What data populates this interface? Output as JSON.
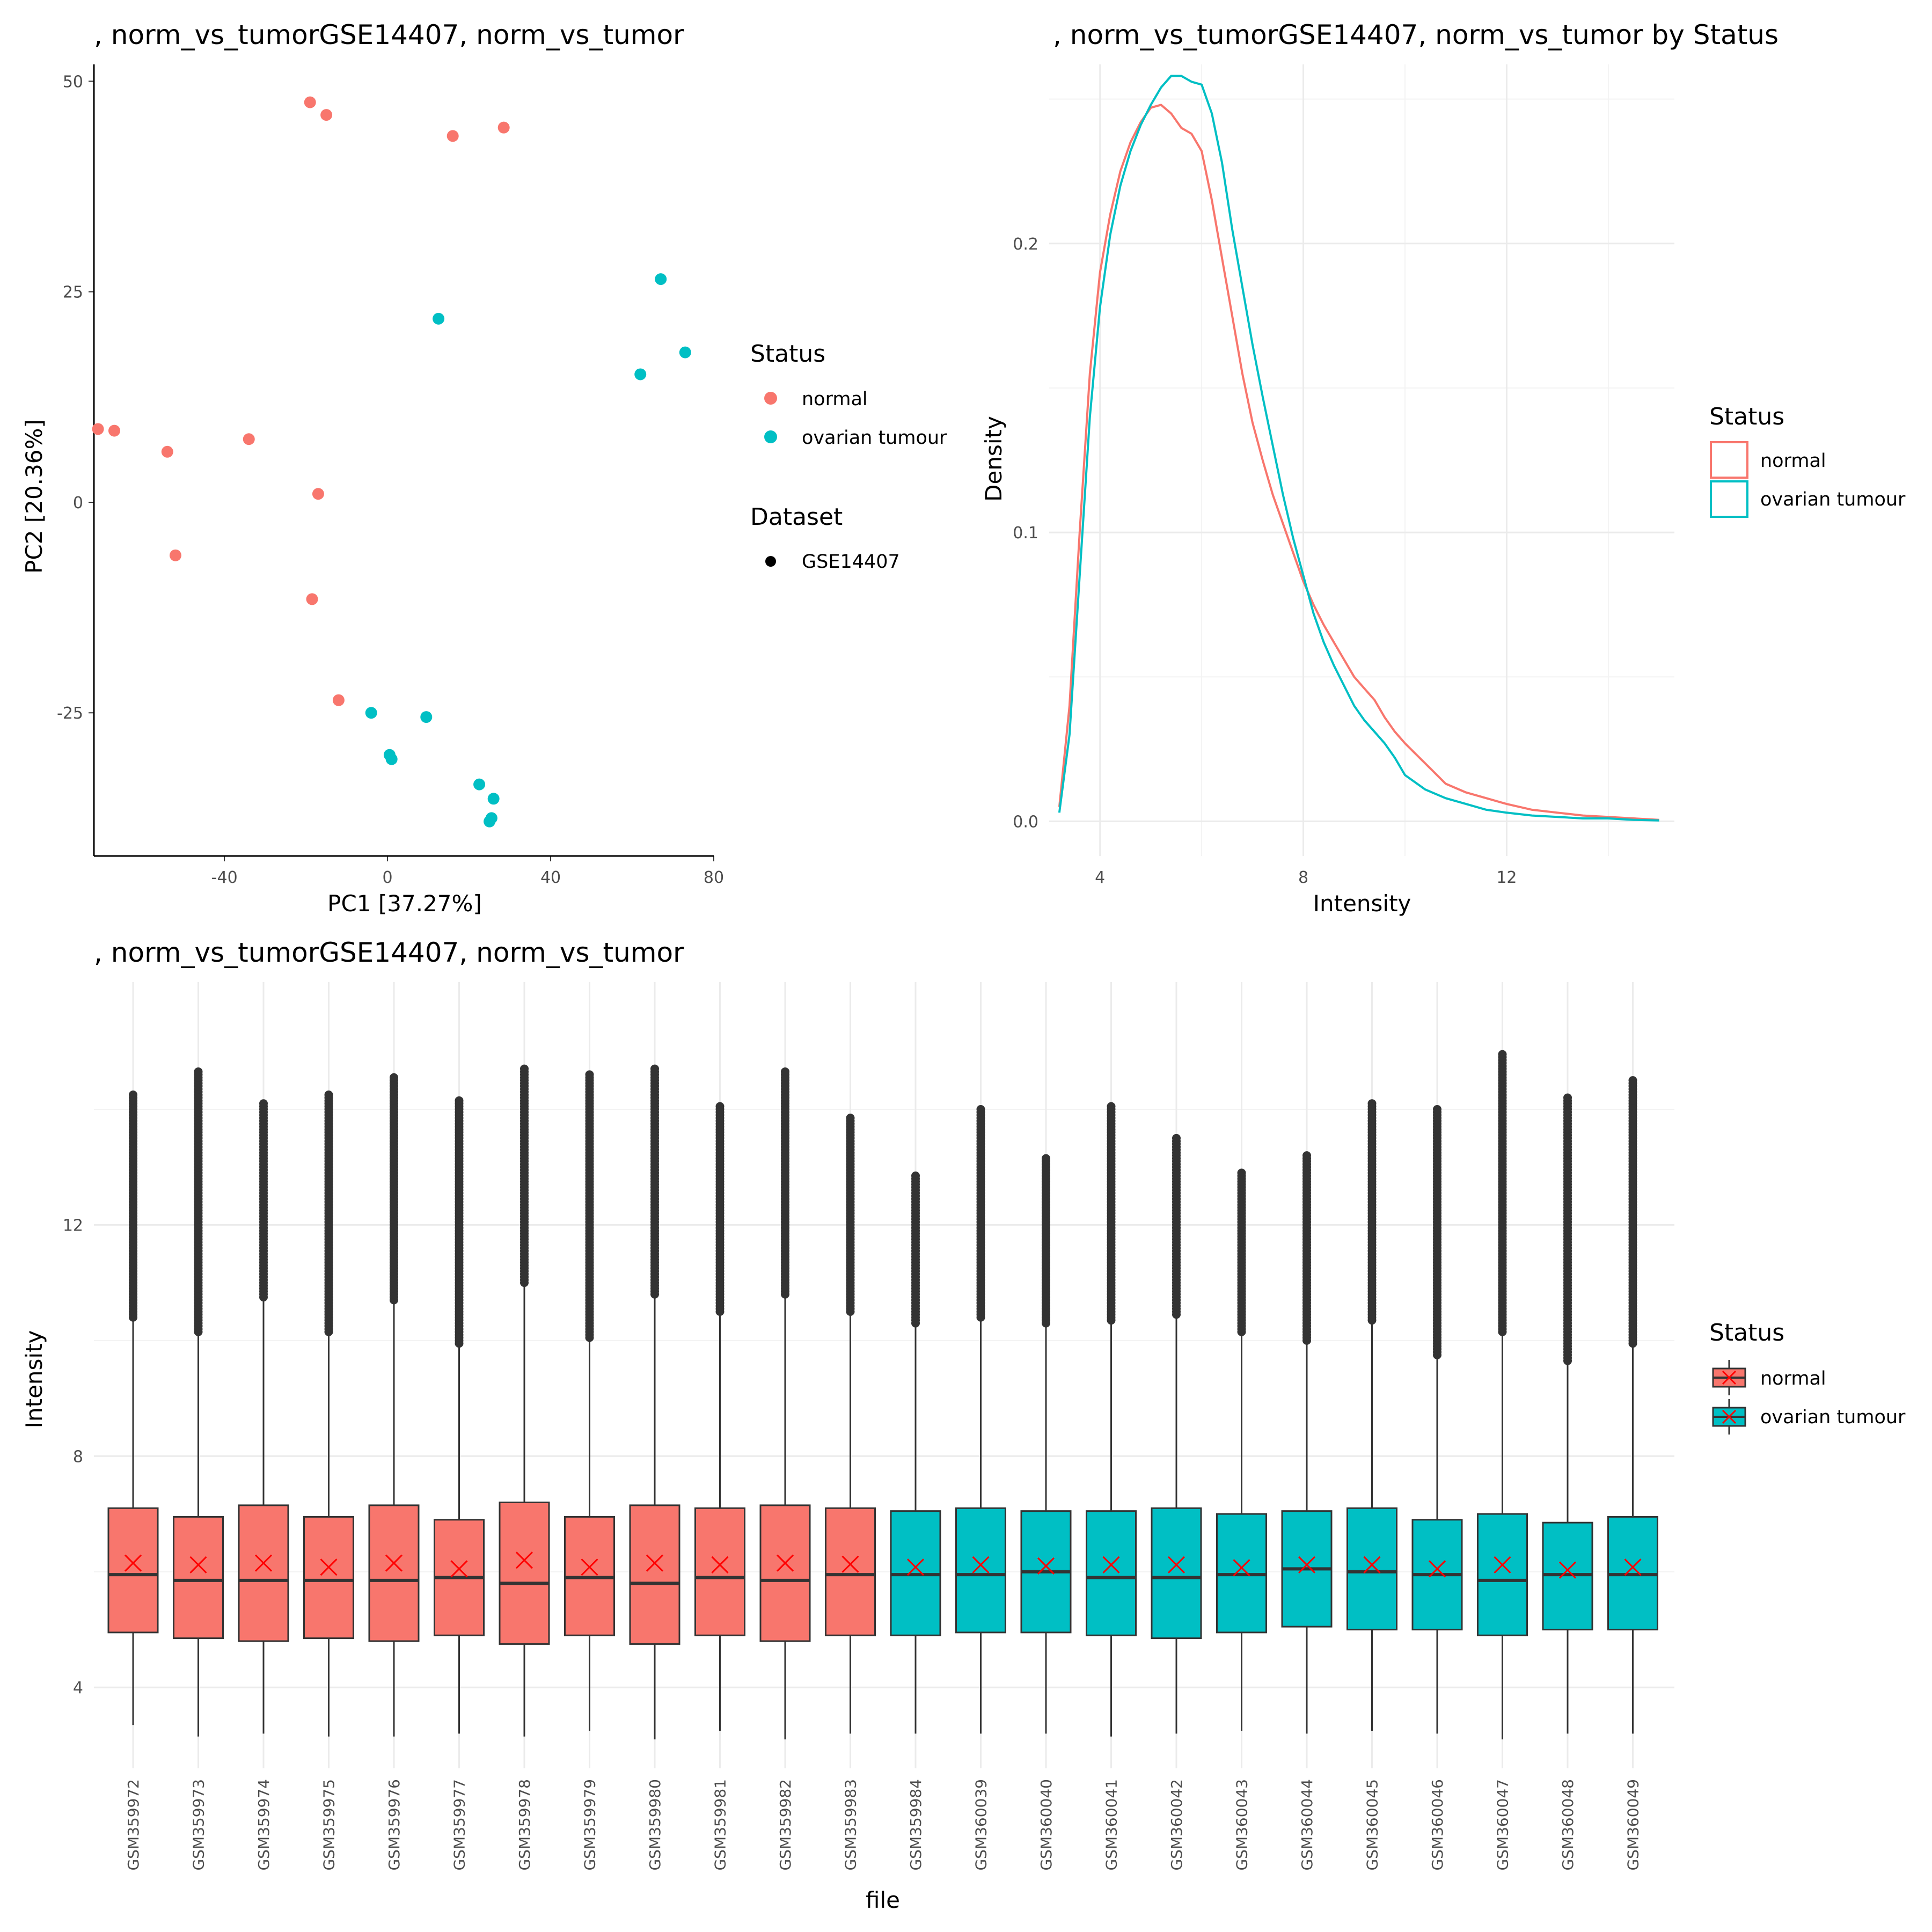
{
  "colors": {
    "normal": "#F8766D",
    "tumour": "#00BFC4",
    "grid": "#EBEBEB",
    "axis": "#000000",
    "text": "#4D4D4D",
    "mean_marker": "#FF0000",
    "box_line": "#333333"
  },
  "chart_data": [
    {
      "type": "scatter",
      "title": ", norm_vs_tumorGSE14407, norm_vs_tumor",
      "xlabel": "PC1 [37.27%]",
      "ylabel": "PC2 [20.36%]",
      "xlim": [
        -72,
        80
      ],
      "ylim": [
        -42,
        52
      ],
      "xticks": [
        -40,
        0,
        40,
        80
      ],
      "yticks": [
        -25,
        0,
        25,
        50
      ],
      "grid": false,
      "legend": {
        "position": "right",
        "groups": [
          {
            "title": "Status",
            "entries": [
              "normal",
              "ovarian tumour"
            ]
          },
          {
            "title": "Dataset",
            "entries": [
              "GSE14407"
            ]
          }
        ]
      },
      "series": [
        {
          "name": "normal",
          "points": [
            [
              -19,
              47.5
            ],
            [
              -15,
              46
            ],
            [
              16,
              43.5
            ],
            [
              28.5,
              44.5
            ],
            [
              -71,
              8.7
            ],
            [
              -67,
              8.5
            ],
            [
              -54,
              6
            ],
            [
              -34,
              7.5
            ],
            [
              -17,
              1
            ],
            [
              -52,
              -6.3
            ],
            [
              -18.5,
              -11.5
            ],
            [
              -12,
              -23.5
            ]
          ]
        },
        {
          "name": "ovarian tumour",
          "points": [
            [
              67,
              26.5
            ],
            [
              12.5,
              21.8
            ],
            [
              73,
              17.8
            ],
            [
              62,
              15.2
            ],
            [
              -4,
              -25
            ],
            [
              9.5,
              -25.5
            ],
            [
              0.5,
              -30
            ],
            [
              1,
              -30.5
            ],
            [
              22.5,
              -33.5
            ],
            [
              26,
              -35.2
            ],
            [
              25.5,
              -37.5
            ],
            [
              25,
              -37.9
            ]
          ]
        }
      ]
    },
    {
      "type": "line",
      "title": ", norm_vs_tumorGSE14407, norm_vs_tumor  by Status",
      "xlabel": "Intensity",
      "ylabel": "Density",
      "xlim": [
        3.0,
        15.3
      ],
      "ylim": [
        -0.012,
        0.262
      ],
      "xticks": [
        4,
        8,
        12
      ],
      "yticks": [
        0.0,
        0.1,
        0.2
      ],
      "grid": true,
      "legend": {
        "position": "right",
        "title": "Status",
        "entries": [
          "normal",
          "ovarian tumour"
        ]
      },
      "series": [
        {
          "name": "normal",
          "x": [
            3.2,
            3.4,
            3.6,
            3.8,
            4.0,
            4.2,
            4.4,
            4.6,
            4.8,
            5.0,
            5.2,
            5.4,
            5.6,
            5.8,
            6.0,
            6.2,
            6.4,
            6.6,
            6.8,
            7.0,
            7.2,
            7.4,
            7.6,
            7.8,
            8.0,
            8.2,
            8.4,
            8.6,
            8.8,
            9.0,
            9.2,
            9.4,
            9.6,
            9.8,
            10.0,
            10.4,
            10.8,
            11.2,
            11.6,
            12.0,
            12.5,
            13.0,
            13.5,
            14.0,
            14.5,
            15.0
          ],
          "y": [
            0.005,
            0.04,
            0.1,
            0.155,
            0.19,
            0.21,
            0.225,
            0.235,
            0.242,
            0.247,
            0.248,
            0.245,
            0.24,
            0.238,
            0.232,
            0.215,
            0.195,
            0.175,
            0.155,
            0.138,
            0.125,
            0.113,
            0.103,
            0.093,
            0.083,
            0.075,
            0.068,
            0.062,
            0.056,
            0.05,
            0.046,
            0.042,
            0.036,
            0.031,
            0.027,
            0.02,
            0.013,
            0.01,
            0.008,
            0.006,
            0.004,
            0.003,
            0.002,
            0.0015,
            0.001,
            0.0005
          ]
        },
        {
          "name": "ovarian tumour",
          "x": [
            3.2,
            3.4,
            3.6,
            3.8,
            4.0,
            4.2,
            4.4,
            4.6,
            4.8,
            5.0,
            5.2,
            5.4,
            5.6,
            5.8,
            6.0,
            6.2,
            6.4,
            6.6,
            6.8,
            7.0,
            7.2,
            7.4,
            7.6,
            7.8,
            8.0,
            8.2,
            8.4,
            8.6,
            8.8,
            9.0,
            9.2,
            9.4,
            9.6,
            9.8,
            10.0,
            10.4,
            10.8,
            11.2,
            11.6,
            12.0,
            12.5,
            13.0,
            13.5,
            14.0,
            14.5,
            15.0
          ],
          "y": [
            0.003,
            0.03,
            0.085,
            0.14,
            0.178,
            0.203,
            0.22,
            0.232,
            0.241,
            0.248,
            0.254,
            0.258,
            0.258,
            0.256,
            0.255,
            0.245,
            0.228,
            0.205,
            0.185,
            0.165,
            0.147,
            0.13,
            0.113,
            0.098,
            0.085,
            0.072,
            0.062,
            0.054,
            0.047,
            0.04,
            0.035,
            0.031,
            0.027,
            0.022,
            0.016,
            0.011,
            0.008,
            0.006,
            0.004,
            0.003,
            0.002,
            0.0015,
            0.001,
            0.001,
            0.0005,
            0.0003
          ]
        }
      ]
    },
    {
      "type": "box",
      "title": ", norm_vs_tumorGSE14407, norm_vs_tumor",
      "xlabel": "file",
      "ylabel": "Intensity",
      "ylim": [
        2.6,
        16.2
      ],
      "yticks": [
        4,
        8,
        12
      ],
      "grid": true,
      "legend": {
        "position": "right",
        "title": "Status",
        "entries": [
          "normal",
          "ovarian tumour"
        ]
      },
      "categories": [
        "GSM359972",
        "GSM359973",
        "GSM359974",
        "GSM359975",
        "GSM359976",
        "GSM359977",
        "GSM359978",
        "GSM359979",
        "GSM359980",
        "GSM359981",
        "GSM359982",
        "GSM359983",
        "GSM359984",
        "GSM360039",
        "GSM360040",
        "GSM360041",
        "GSM360042",
        "GSM360043",
        "GSM360044",
        "GSM360045",
        "GSM360046",
        "GSM360047",
        "GSM360048",
        "GSM360049"
      ],
      "groups": [
        "normal",
        "normal",
        "normal",
        "normal",
        "normal",
        "normal",
        "normal",
        "normal",
        "normal",
        "normal",
        "normal",
        "normal",
        "ovarian tumour",
        "ovarian tumour",
        "ovarian tumour",
        "ovarian tumour",
        "ovarian tumour",
        "ovarian tumour",
        "ovarian tumour",
        "ovarian tumour",
        "ovarian tumour",
        "ovarian tumour",
        "ovarian tumour",
        "ovarian tumour"
      ],
      "boxes": [
        {
          "wlo": 3.35,
          "q1": 4.95,
          "med": 5.95,
          "q3": 7.1,
          "whi": 10.4,
          "out_lo": 10.4,
          "out_hi": 14.25,
          "mean": 6.15
        },
        {
          "wlo": 3.15,
          "q1": 4.85,
          "med": 5.85,
          "q3": 6.95,
          "whi": 10.15,
          "out_lo": 10.15,
          "out_hi": 14.65,
          "mean": 6.12
        },
        {
          "wlo": 3.2,
          "q1": 4.8,
          "med": 5.85,
          "q3": 7.15,
          "whi": 10.75,
          "out_lo": 10.75,
          "out_hi": 14.1,
          "mean": 6.15
        },
        {
          "wlo": 3.15,
          "q1": 4.85,
          "med": 5.85,
          "q3": 6.95,
          "whi": 10.15,
          "out_lo": 10.15,
          "out_hi": 14.25,
          "mean": 6.08
        },
        {
          "wlo": 3.15,
          "q1": 4.8,
          "med": 5.85,
          "q3": 7.15,
          "whi": 10.7,
          "out_lo": 10.7,
          "out_hi": 14.55,
          "mean": 6.15
        },
        {
          "wlo": 3.2,
          "q1": 4.9,
          "med": 5.9,
          "q3": 6.9,
          "whi": 9.95,
          "out_lo": 9.95,
          "out_hi": 14.15,
          "mean": 6.05
        },
        {
          "wlo": 3.15,
          "q1": 4.75,
          "med": 5.8,
          "q3": 7.2,
          "whi": 11.0,
          "out_lo": 11.0,
          "out_hi": 14.7,
          "mean": 6.2
        },
        {
          "wlo": 3.25,
          "q1": 4.9,
          "med": 5.9,
          "q3": 6.95,
          "whi": 10.05,
          "out_lo": 10.05,
          "out_hi": 14.6,
          "mean": 6.08
        },
        {
          "wlo": 3.1,
          "q1": 4.75,
          "med": 5.8,
          "q3": 7.15,
          "whi": 10.8,
          "out_lo": 10.8,
          "out_hi": 14.7,
          "mean": 6.15
        },
        {
          "wlo": 3.25,
          "q1": 4.9,
          "med": 5.9,
          "q3": 7.1,
          "whi": 10.5,
          "out_lo": 10.5,
          "out_hi": 14.05,
          "mean": 6.12
        },
        {
          "wlo": 3.1,
          "q1": 4.8,
          "med": 5.85,
          "q3": 7.15,
          "whi": 10.8,
          "out_lo": 10.8,
          "out_hi": 14.65,
          "mean": 6.15
        },
        {
          "wlo": 3.2,
          "q1": 4.9,
          "med": 5.95,
          "q3": 7.1,
          "whi": 10.5,
          "out_lo": 10.5,
          "out_hi": 13.85,
          "mean": 6.13
        },
        {
          "wlo": 3.2,
          "q1": 4.9,
          "med": 5.95,
          "q3": 7.05,
          "whi": 10.3,
          "out_lo": 10.3,
          "out_hi": 12.85,
          "mean": 6.08
        },
        {
          "wlo": 3.2,
          "q1": 4.95,
          "med": 5.95,
          "q3": 7.1,
          "whi": 10.4,
          "out_lo": 10.4,
          "out_hi": 14.0,
          "mean": 6.12
        },
        {
          "wlo": 3.2,
          "q1": 4.95,
          "med": 6.0,
          "q3": 7.05,
          "whi": 10.3,
          "out_lo": 10.3,
          "out_hi": 13.15,
          "mean": 6.1
        },
        {
          "wlo": 3.15,
          "q1": 4.9,
          "med": 5.9,
          "q3": 7.05,
          "whi": 10.35,
          "out_lo": 10.35,
          "out_hi": 14.05,
          "mean": 6.12
        },
        {
          "wlo": 3.2,
          "q1": 4.85,
          "med": 5.9,
          "q3": 7.1,
          "whi": 10.45,
          "out_lo": 10.45,
          "out_hi": 13.5,
          "mean": 6.12
        },
        {
          "wlo": 3.25,
          "q1": 4.95,
          "med": 5.95,
          "q3": 7.0,
          "whi": 10.15,
          "out_lo": 10.15,
          "out_hi": 12.9,
          "mean": 6.07
        },
        {
          "wlo": 3.2,
          "q1": 5.05,
          "med": 6.05,
          "q3": 7.05,
          "whi": 10.0,
          "out_lo": 10.0,
          "out_hi": 13.2,
          "mean": 6.12
        },
        {
          "wlo": 3.25,
          "q1": 5.0,
          "med": 6.0,
          "q3": 7.1,
          "whi": 10.35,
          "out_lo": 10.35,
          "out_hi": 14.1,
          "mean": 6.12
        },
        {
          "wlo": 3.2,
          "q1": 5.0,
          "med": 5.95,
          "q3": 6.9,
          "whi": 9.75,
          "out_lo": 9.75,
          "out_hi": 14.0,
          "mean": 6.05
        },
        {
          "wlo": 3.1,
          "q1": 4.9,
          "med": 5.85,
          "q3": 7.0,
          "whi": 10.15,
          "out_lo": 10.15,
          "out_hi": 14.95,
          "mean": 6.12
        },
        {
          "wlo": 3.2,
          "q1": 5.0,
          "med": 5.95,
          "q3": 6.85,
          "whi": 9.65,
          "out_lo": 9.65,
          "out_hi": 14.2,
          "mean": 6.03
        },
        {
          "wlo": 3.2,
          "q1": 5.0,
          "med": 5.95,
          "q3": 6.95,
          "whi": 9.95,
          "out_lo": 9.95,
          "out_hi": 14.5,
          "mean": 6.08
        }
      ]
    }
  ]
}
